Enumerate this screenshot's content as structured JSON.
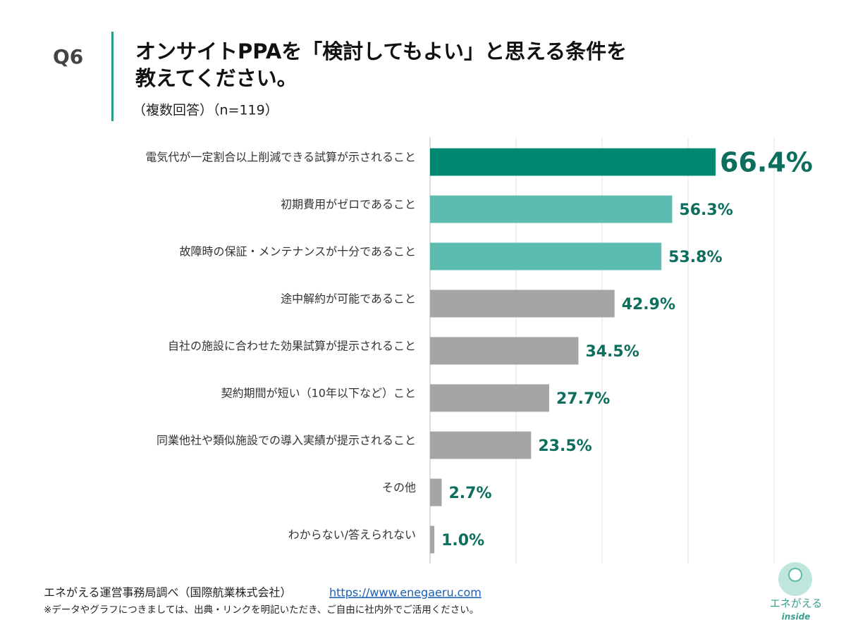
{
  "chart_data": {
    "type": "hbar",
    "label": "Q6",
    "title": [
      "オンサイトPPAを「検討してもよい」と思える条件を",
      "教えてください。"
    ],
    "subtitle": "（複数回答）（n=119）",
    "categories": [
      "電気代が一定割合以上削減できる試算が示されること",
      "初期費用がゼロであること",
      "故障時の保証・メンテナンスが十分であること",
      "途中解約が可能であること",
      "自社の施設に合わせた効果試算が提示されること",
      "契約期間が短い（10年以下など）こと",
      "同業他社や類似施設での導入実績が提示されること",
      "その他",
      "わからない/答えられない"
    ],
    "values": [
      66.4,
      56.3,
      53.8,
      42.9,
      34.5,
      27.7,
      23.5,
      2.7,
      1.0
    ],
    "value_labels": [
      "66.4%",
      "56.3%",
      "53.8%",
      "42.9%",
      "34.5%",
      "27.7%",
      "23.5%",
      "2.7%",
      "1.0%"
    ],
    "colors": [
      "#00876f",
      "#5dbcb0",
      "#5dbcb0",
      "#a6a4a7",
      "#a6a4a7",
      "#a6a4a7",
      "#a6a4a7",
      "#a6a4a7",
      "#a6a4a7"
    ],
    "xlim": [
      0,
      80
    ],
    "xticks": [
      0,
      20,
      40,
      60,
      80
    ],
    "grid": true,
    "source": "エネがえる運営事務局調べ（国際航業株式会社）",
    "link": "https://www.enegaeru.com",
    "note": "※データやグラフにつきましては、出典・リンクを明記いただき、ご自由に社内外でご活用ください。",
    "logo": [
      "エネがえる",
      "inside"
    ]
  }
}
